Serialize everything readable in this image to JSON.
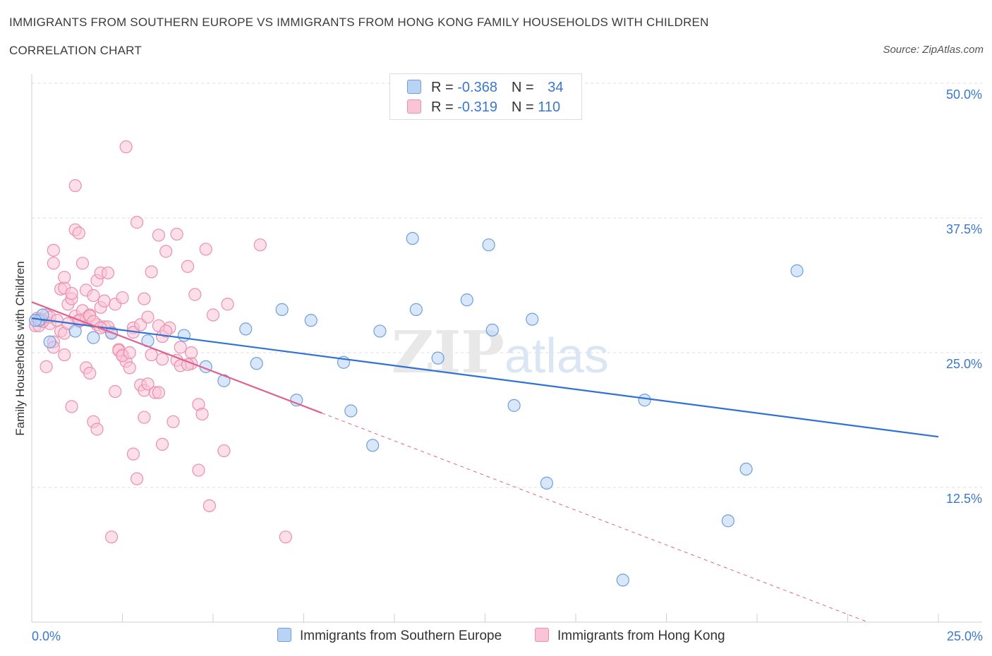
{
  "title": "IMMIGRANTS FROM SOUTHERN EUROPE VS IMMIGRANTS FROM HONG KONG FAMILY HOUSEHOLDS WITH CHILDREN",
  "subtitle": "CORRELATION CHART",
  "source": "Source: ZipAtlas.com",
  "watermark": {
    "zip": "ZIP",
    "atlas": "atlas"
  },
  "colors": {
    "blue_fill": "#b9d3f5",
    "blue_stroke": "#6f9fdc",
    "blue_line": "#2f72d4",
    "pink_fill": "#f9c4d6",
    "pink_stroke": "#ea8fb0",
    "pink_line": "#e0628f",
    "grid": "#dcdcdc",
    "axis_label": "#3b78c9"
  },
  "legend": {
    "row1": {
      "r_label": "R = ",
      "r_value": "-0.368",
      "n_label": "N = ",
      "n_value": "34"
    },
    "row2": {
      "r_label": "R = ",
      "r_value": "-0.319",
      "n_label": "N = ",
      "n_value": "110"
    }
  },
  "chart_data": {
    "type": "scatter",
    "ylabel": "Family Households with Children",
    "xlim": [
      0,
      25
    ],
    "ylim": [
      0,
      50
    ],
    "x_tick_labels": [
      "0.0%",
      "25.0%"
    ],
    "y_tick_labels": [
      "12.5%",
      "25.0%",
      "37.5%",
      "50.0%"
    ],
    "y_ticks": [
      12.5,
      25.0,
      37.5,
      50.0
    ],
    "grid": true,
    "series": [
      {
        "name": "Immigrants from Southern Europe",
        "color": "blue",
        "points": [
          [
            0.2,
            28.0
          ],
          [
            0.3,
            28.5
          ],
          [
            0.5,
            26.0
          ],
          [
            1.2,
            27.0
          ],
          [
            1.7,
            26.4
          ],
          [
            2.2,
            26.8
          ],
          [
            3.2,
            26.1
          ],
          [
            4.2,
            26.6
          ],
          [
            4.8,
            23.7
          ],
          [
            5.3,
            22.4
          ],
          [
            5.9,
            27.2
          ],
          [
            6.2,
            24.0
          ],
          [
            6.9,
            29.0
          ],
          [
            7.3,
            20.6
          ],
          [
            7.7,
            28.0
          ],
          [
            8.6,
            24.1
          ],
          [
            8.8,
            19.6
          ],
          [
            9.4,
            16.4
          ],
          [
            9.6,
            27.0
          ],
          [
            10.5,
            35.6
          ],
          [
            10.6,
            29.0
          ],
          [
            11.2,
            24.5
          ],
          [
            12.0,
            29.9
          ],
          [
            12.6,
            35.0
          ],
          [
            12.7,
            27.1
          ],
          [
            13.3,
            20.1
          ],
          [
            13.8,
            28.1
          ],
          [
            14.2,
            12.9
          ],
          [
            16.3,
            3.9
          ],
          [
            16.9,
            20.6
          ],
          [
            19.2,
            9.4
          ],
          [
            19.7,
            14.2
          ],
          [
            21.1,
            32.6
          ],
          [
            0.1,
            28.0
          ]
        ],
        "trend": {
          "from": [
            0,
            28.2
          ],
          "to": [
            25,
            17.2
          ]
        }
      },
      {
        "name": "Immigrants from Hong Kong",
        "color": "pink",
        "points": [
          [
            0.1,
            27.5
          ],
          [
            0.15,
            28.2
          ],
          [
            0.3,
            27.9
          ],
          [
            0.4,
            28.5
          ],
          [
            0.5,
            27.7
          ],
          [
            0.6,
            26.0
          ],
          [
            0.8,
            27.0
          ],
          [
            0.9,
            24.8
          ],
          [
            1.0,
            29.5
          ],
          [
            1.1,
            30.0
          ],
          [
            1.2,
            28.4
          ],
          [
            1.3,
            27.9
          ],
          [
            1.4,
            28.9
          ],
          [
            1.5,
            28.2
          ],
          [
            1.6,
            28.5
          ],
          [
            1.8,
            27.6
          ],
          [
            1.9,
            29.2
          ],
          [
            2.0,
            27.4
          ],
          [
            2.2,
            26.9
          ],
          [
            2.4,
            25.3
          ],
          [
            2.5,
            24.8
          ],
          [
            2.6,
            24.2
          ],
          [
            2.8,
            27.3
          ],
          [
            3.0,
            22.0
          ],
          [
            3.1,
            21.5
          ],
          [
            3.4,
            21.3
          ],
          [
            3.5,
            27.5
          ],
          [
            3.6,
            26.5
          ],
          [
            4.0,
            24.3
          ],
          [
            4.1,
            23.8
          ],
          [
            4.4,
            24.0
          ],
          [
            4.6,
            20.2
          ],
          [
            4.7,
            19.3
          ],
          [
            0.2,
            27.5
          ],
          [
            0.3,
            27.9
          ],
          [
            0.5,
            28.3
          ],
          [
            0.4,
            23.7
          ],
          [
            0.6,
            34.5
          ],
          [
            0.6,
            33.3
          ],
          [
            0.8,
            30.9
          ],
          [
            0.9,
            31.0
          ],
          [
            0.9,
            32.0
          ],
          [
            1.1,
            30.5
          ],
          [
            1.2,
            36.4
          ],
          [
            1.3,
            36.1
          ],
          [
            1.4,
            33.3
          ],
          [
            1.5,
            30.8
          ],
          [
            1.6,
            28.4
          ],
          [
            1.7,
            30.3
          ],
          [
            1.8,
            31.7
          ],
          [
            1.9,
            32.4
          ],
          [
            2.0,
            29.8
          ],
          [
            2.1,
            32.4
          ],
          [
            2.3,
            29.5
          ],
          [
            2.5,
            30.1
          ],
          [
            2.6,
            44.1
          ],
          [
            2.8,
            26.9
          ],
          [
            2.9,
            37.1
          ],
          [
            3.0,
            27.6
          ],
          [
            3.1,
            30.0
          ],
          [
            3.3,
            32.5
          ],
          [
            3.5,
            35.9
          ],
          [
            3.7,
            34.4
          ],
          [
            3.8,
            27.3
          ],
          [
            4.0,
            36.0
          ],
          [
            4.3,
            33.0
          ],
          [
            4.5,
            30.4
          ],
          [
            4.8,
            34.6
          ],
          [
            5.0,
            28.5
          ],
          [
            5.4,
            29.5
          ],
          [
            6.3,
            35.0
          ],
          [
            1.2,
            40.5
          ],
          [
            1.5,
            23.6
          ],
          [
            1.6,
            23.1
          ],
          [
            1.7,
            18.6
          ],
          [
            1.8,
            17.9
          ],
          [
            2.3,
            21.4
          ],
          [
            2.7,
            23.6
          ],
          [
            2.8,
            15.6
          ],
          [
            2.9,
            13.3
          ],
          [
            3.1,
            19.0
          ],
          [
            3.2,
            22.1
          ],
          [
            3.5,
            21.3
          ],
          [
            3.6,
            16.5
          ],
          [
            3.9,
            18.6
          ],
          [
            4.3,
            23.9
          ],
          [
            4.6,
            14.1
          ],
          [
            4.9,
            10.8
          ],
          [
            5.3,
            15.9
          ],
          [
            2.2,
            7.9
          ],
          [
            7.0,
            7.9
          ],
          [
            0.6,
            25.5
          ],
          [
            0.9,
            26.8
          ],
          [
            1.1,
            20.0
          ],
          [
            1.3,
            28.0
          ],
          [
            1.7,
            27.9
          ],
          [
            2.1,
            27.4
          ],
          [
            2.4,
            25.2
          ],
          [
            2.5,
            24.7
          ],
          [
            2.7,
            25.0
          ],
          [
            3.2,
            28.3
          ],
          [
            3.3,
            24.8
          ],
          [
            3.6,
            24.4
          ],
          [
            3.7,
            27.0
          ],
          [
            4.1,
            25.5
          ],
          [
            4.4,
            25.0
          ],
          [
            0.25,
            28.1
          ],
          [
            0.7,
            28.0
          ],
          [
            1.0,
            27.7
          ],
          [
            1.9,
            27.3
          ]
        ],
        "trend": {
          "from": [
            0,
            29.7
          ],
          "to": [
            8.0,
            19.4
          ]
        },
        "trend_extrapolated": {
          "from": [
            8.0,
            19.4
          ],
          "to": [
            25,
            -2.5
          ]
        }
      }
    ]
  }
}
